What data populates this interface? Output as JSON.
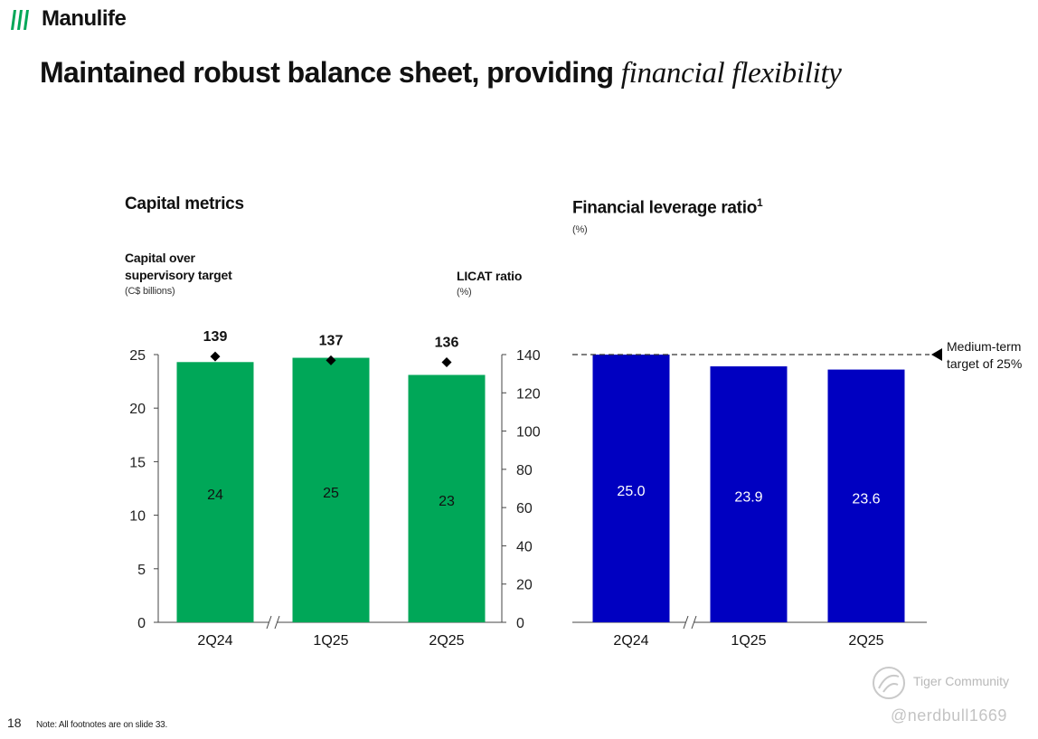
{
  "brand": {
    "name": "Manulife",
    "color": "#00a758"
  },
  "title": {
    "main": "Maintained robust balance sheet, providing",
    "italic": "financial flexibility"
  },
  "left_panel": {
    "title": "Capital metrics",
    "bar_label_line1": "Capital over",
    "bar_label_line2": "supervisory target",
    "bar_unit": "(C$ billions)",
    "ratio_label": "LICAT ratio",
    "ratio_unit": "(%)"
  },
  "right_panel": {
    "title": "Financial leverage ratio",
    "title_sup": "1",
    "unit": "(%)",
    "target_line1": "Medium-term",
    "target_line2": "target of 25%"
  },
  "chart_data": [
    {
      "type": "bar",
      "name": "capital",
      "categories": [
        "2Q24",
        "1Q25",
        "2Q25"
      ],
      "series": [
        {
          "name": "Capital over supervisory target",
          "values": [
            24.3,
            24.7,
            23.1
          ],
          "labels": [
            "24",
            "25",
            "23"
          ],
          "color": "#00a758"
        },
        {
          "name": "LICAT ratio",
          "axis": "right",
          "marker": "diamond",
          "values": [
            139,
            137,
            136
          ],
          "labels": [
            "139",
            "137",
            "136"
          ]
        }
      ],
      "ylim": [
        0,
        25
      ],
      "yticks": [
        "0",
        "5",
        "10",
        "15",
        "20",
        "25"
      ],
      "y2lim": [
        0,
        140
      ],
      "y2ticks": [
        "0",
        "20",
        "40",
        "60",
        "80",
        "100",
        "120",
        "140"
      ],
      "axis_break_after": 0
    },
    {
      "type": "bar",
      "name": "leverage",
      "categories": [
        "2Q24",
        "1Q25",
        "2Q25"
      ],
      "series": [
        {
          "values": [
            25.0,
            23.9,
            23.6
          ],
          "labels": [
            "25.0",
            "23.9",
            "23.6"
          ],
          "color": "#0000c1"
        }
      ],
      "ylim": [
        0,
        25
      ],
      "target": 25,
      "axis_break_after": 0
    }
  ],
  "footer": {
    "page": "18",
    "note": "Note: All footnotes are on slide 33."
  },
  "watermark": {
    "community": "Tiger Community",
    "handle": "@nerdbull1669"
  }
}
